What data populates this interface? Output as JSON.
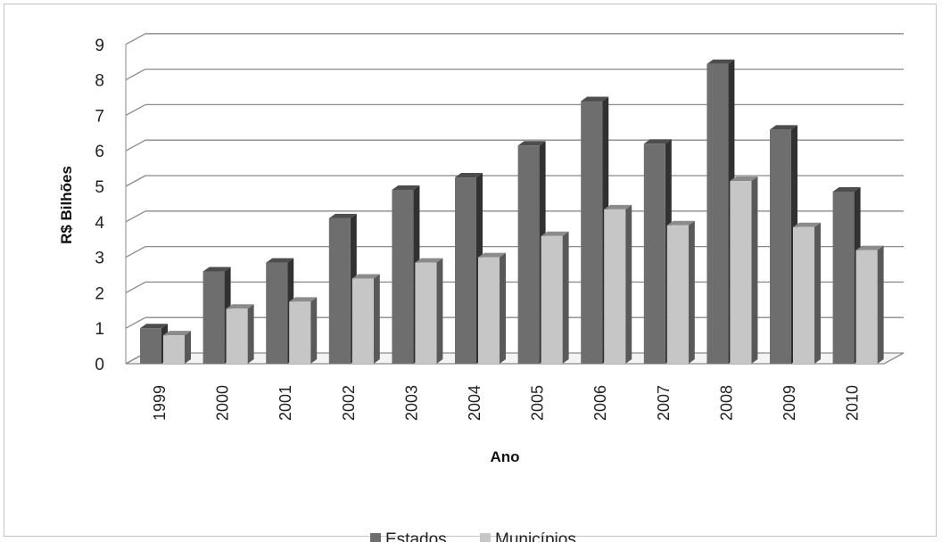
{
  "chart_data": {
    "type": "bar",
    "xlabel": "Ano",
    "ylabel": "R$ Bilhões",
    "ylim": [
      0,
      9
    ],
    "yticks": [
      0,
      1,
      2,
      3,
      4,
      5,
      6,
      7,
      8,
      9
    ],
    "grid": true,
    "legend_position": "bottom",
    "categories": [
      "1999",
      "2000",
      "2001",
      "2002",
      "2003",
      "2004",
      "2005",
      "2006",
      "2007",
      "2008",
      "2009",
      "2010"
    ],
    "series": [
      {
        "name": "Estados",
        "color": "#6e6e6e",
        "values": [
          1.0,
          2.6,
          2.85,
          4.1,
          4.9,
          5.25,
          6.15,
          7.4,
          6.2,
          8.45,
          6.6,
          4.85
        ]
      },
      {
        "name": "Municípios",
        "color": "#c6c6c6",
        "values": [
          0.8,
          1.55,
          1.75,
          2.4,
          2.85,
          3.0,
          3.6,
          4.35,
          3.9,
          5.15,
          3.85,
          3.2
        ]
      }
    ]
  }
}
